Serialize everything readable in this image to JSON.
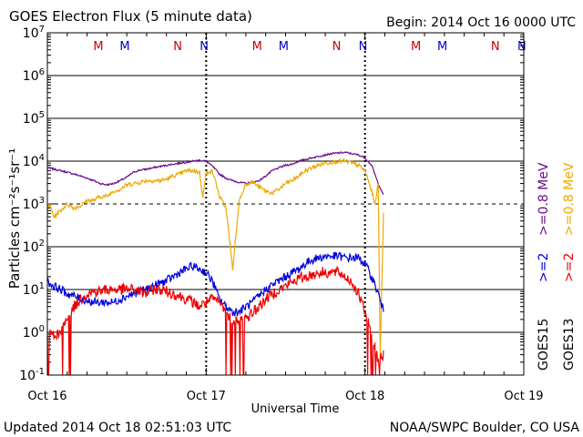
{
  "chart_data": {
    "type": "line",
    "title": "GOES Electron Flux (5 minute data)",
    "begin_label": "Begin: 2014 Oct 16 0000 UTC",
    "xlabel": "Universal Time",
    "ylabel": "Particles cm⁻²s⁻¹sr⁻¹",
    "y_scale": "log",
    "ylim": [
      0.1,
      10000000
    ],
    "xlim": [
      0,
      72
    ],
    "x_unit": "hours since 2014 Oct 16 00:00 UTC",
    "y_tick_labels": [
      {
        "base": "10",
        "exp": "-1",
        "value": 0.1
      },
      {
        "base": "10",
        "exp": "0",
        "value": 1
      },
      {
        "base": "10",
        "exp": "1",
        "value": 10
      },
      {
        "base": "10",
        "exp": "2",
        "value": 100
      },
      {
        "base": "10",
        "exp": "3",
        "value": 1000
      },
      {
        "base": "10",
        "exp": "4",
        "value": 10000
      },
      {
        "base": "10",
        "exp": "5",
        "value": 100000
      },
      {
        "base": "10",
        "exp": "6",
        "value": 1000000
      },
      {
        "base": "10",
        "exp": "7",
        "value": 10000000
      }
    ],
    "x_ticks": [
      {
        "label": "Oct 16",
        "value": 0
      },
      {
        "label": "Oct 17",
        "value": 24
      },
      {
        "label": "Oct 18",
        "value": 48
      },
      {
        "label": "Oct 19",
        "value": 72
      }
    ],
    "threshold_level": 1000,
    "day_markers": [
      24,
      48
    ],
    "data_end": 50.8,
    "mn_markers": [
      {
        "label": "M",
        "x": 7.7,
        "color": "#cc0000"
      },
      {
        "label": "M",
        "x": 11.7,
        "color": "#0000cc"
      },
      {
        "label": "N",
        "x": 19.7,
        "color": "#cc0000"
      },
      {
        "label": "N",
        "x": 23.7,
        "color": "#0000cc"
      },
      {
        "label": "M",
        "x": 31.7,
        "color": "#cc0000"
      },
      {
        "label": "M",
        "x": 35.7,
        "color": "#0000cc"
      },
      {
        "label": "N",
        "x": 43.7,
        "color": "#cc0000"
      },
      {
        "label": "N",
        "x": 47.7,
        "color": "#0000cc"
      },
      {
        "label": "M",
        "x": 55.7,
        "color": "#cc0000"
      },
      {
        "label": "M",
        "x": 59.7,
        "color": "#0000cc"
      },
      {
        "label": "N",
        "x": 67.7,
        "color": "#cc0000"
      },
      {
        "label": "N",
        "x": 71.7,
        "color": "#0000cc"
      }
    ],
    "series": [
      {
        "name": "GOES15 >=0.8 MeV",
        "color": "#6a0d91",
        "x": [
          0,
          1,
          2,
          3,
          4,
          5,
          6,
          7,
          8,
          9,
          10,
          11,
          12,
          13,
          14,
          15,
          16,
          17,
          18,
          19,
          20,
          21,
          22,
          23,
          24,
          25,
          26,
          27,
          28,
          29,
          30,
          31,
          32,
          33,
          34,
          35,
          36,
          37,
          38,
          39,
          40,
          41,
          42,
          43,
          44,
          45,
          46,
          47,
          48,
          49,
          50,
          50.8
        ],
        "y": [
          7000,
          6500,
          6000,
          5500,
          5000,
          4500,
          4000,
          3500,
          3000,
          2800,
          3000,
          3500,
          4200,
          5500,
          6200,
          6500,
          7000,
          7500,
          8000,
          8500,
          9000,
          9500,
          10000,
          10500,
          10000,
          7500,
          5000,
          4000,
          3500,
          3200,
          3000,
          3200,
          3500,
          4500,
          6000,
          7000,
          8000,
          8500,
          10000,
          11000,
          12000,
          13000,
          14000,
          15000,
          15500,
          16000,
          15000,
          14000,
          12000,
          8000,
          3000,
          1600
        ]
      },
      {
        "name": "GOES13 >=0.8 MeV",
        "color": "#f0a800",
        "x": [
          0,
          0.5,
          1,
          2,
          3,
          4,
          5,
          6,
          7,
          8,
          9,
          10,
          11,
          12,
          13,
          14,
          15,
          16,
          17,
          18,
          19,
          20,
          21,
          22,
          23,
          23.5,
          24,
          24.5,
          25,
          25.5,
          26,
          27,
          28,
          29,
          30,
          31,
          32,
          33,
          34,
          35,
          36,
          37,
          38,
          39,
          40,
          41,
          42,
          43,
          44,
          45,
          46,
          47,
          48,
          49,
          49.5,
          50,
          50.3,
          50.8
        ],
        "y": [
          1000,
          800,
          500,
          700,
          1000,
          800,
          900,
          1200,
          1200,
          1500,
          1500,
          2000,
          2200,
          2800,
          3000,
          3200,
          3500,
          3500,
          3500,
          3800,
          4500,
          5000,
          6000,
          6000,
          5500,
          1500,
          5000,
          6000,
          5500,
          3000,
          1500,
          800,
          30,
          1200,
          3000,
          3200,
          2500,
          2000,
          1800,
          2200,
          3000,
          3500,
          4500,
          6000,
          7000,
          8000,
          9000,
          9500,
          10000,
          10000,
          9000,
          8000,
          6000,
          2000,
          1000,
          3000,
          0.3,
          700
        ]
      },
      {
        "name": "GOES15 >=2 MeV",
        "color": "#0000dd",
        "x": [
          0,
          1,
          2,
          3,
          4,
          5,
          6,
          7,
          8,
          9,
          10,
          11,
          12,
          13,
          14,
          15,
          16,
          17,
          18,
          19,
          20,
          21,
          22,
          23,
          24,
          25,
          26,
          27,
          28,
          29,
          30,
          31,
          32,
          33,
          34,
          35,
          36,
          37,
          38,
          39,
          40,
          41,
          42,
          43,
          44,
          45,
          46,
          47,
          48,
          49,
          50,
          50.8
        ],
        "y": [
          15,
          12,
          10,
          8,
          7,
          6,
          5.5,
          5,
          5,
          5,
          5,
          6,
          7,
          8,
          9,
          10,
          12,
          14,
          16,
          20,
          25,
          30,
          35,
          30,
          25,
          15,
          6,
          4,
          3,
          3,
          4,
          5,
          7,
          10,
          13,
          16,
          20,
          25,
          30,
          40,
          50,
          55,
          60,
          60,
          60,
          55,
          55,
          55,
          40,
          20,
          8,
          3
        ]
      },
      {
        "name": "GOES13 >=2 MeV",
        "color": "#ee0000",
        "x": [
          0,
          1,
          2,
          3,
          4,
          5,
          6,
          7,
          8,
          9,
          10,
          11,
          12,
          13,
          14,
          15,
          16,
          17,
          18,
          19,
          20,
          21,
          22,
          23,
          24,
          25,
          26,
          27,
          28,
          29,
          30,
          31,
          32,
          33,
          34,
          35,
          36,
          37,
          38,
          39,
          40,
          41,
          42,
          43,
          44,
          45,
          46,
          47,
          48,
          49,
          50,
          50.8
        ],
        "y": [
          1,
          0.8,
          1,
          2,
          4,
          6,
          8,
          9,
          9,
          10,
          10,
          10,
          10,
          10,
          9,
          8,
          10,
          10,
          9,
          8,
          7,
          6,
          5,
          4,
          5,
          6,
          5,
          3,
          2,
          2,
          2,
          3,
          4,
          6,
          8,
          10,
          12,
          15,
          18,
          20,
          22,
          25,
          25,
          25,
          25,
          20,
          15,
          8,
          3,
          1,
          0.2,
          0.3
        ]
      }
    ],
    "legend": {
      "left_col": {
        "label": "GOES15",
        "items": [
          {
            "text": ">=2",
            "color": "#0000dd"
          },
          {
            "text": ">=0.8 MeV",
            "color": "#6a0d91"
          }
        ]
      },
      "right_col": {
        "label": "GOES13",
        "items": [
          {
            "text": ">=2",
            "color": "#ee0000"
          },
          {
            "text": ">=0.8 MeV",
            "color": "#f0a800"
          }
        ]
      }
    }
  },
  "footer": {
    "updated": "Updated 2014 Oct 18 02:51:03 UTC",
    "credit": "NOAA/SWPC Boulder, CO USA"
  }
}
